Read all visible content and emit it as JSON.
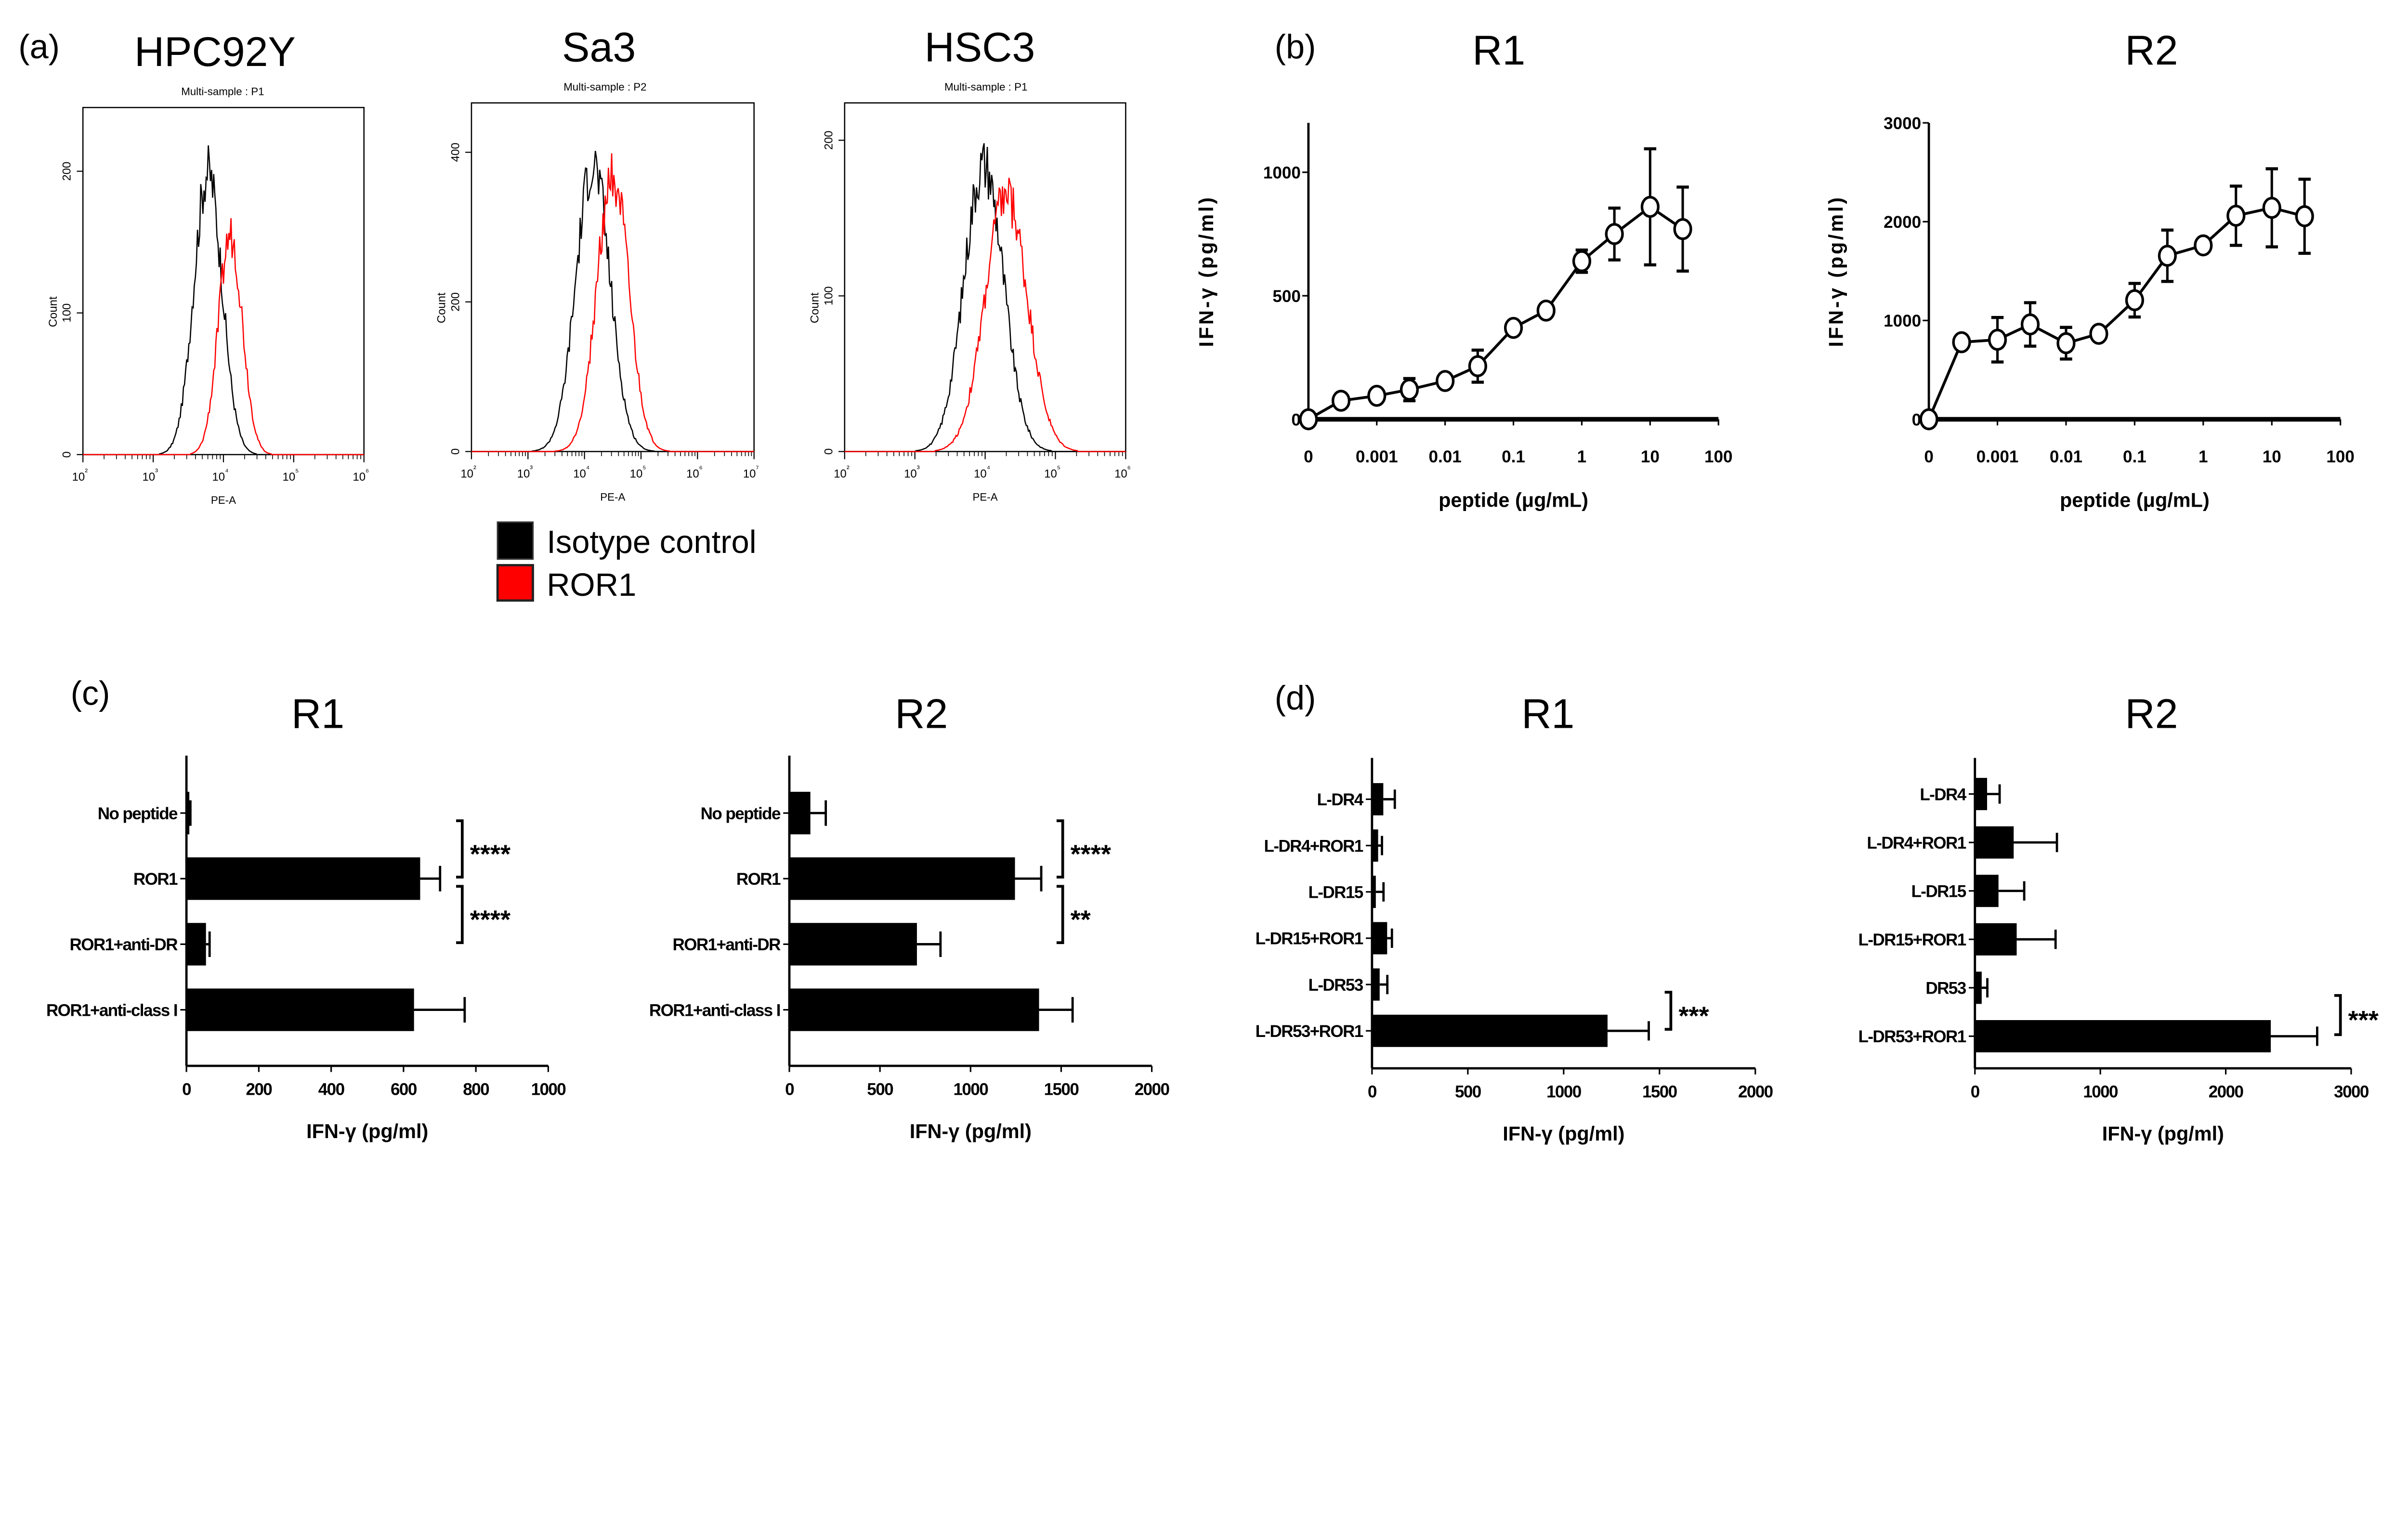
{
  "panels": {
    "a": "(a)",
    "b": "(b)",
    "c": "(c)",
    "d": "(d)"
  },
  "legend": {
    "items": [
      {
        "label": "Isotype control",
        "color": "#000000"
      },
      {
        "label": "ROR1",
        "color": "#ff0000"
      }
    ]
  },
  "chart_data": [
    {
      "id": "a1",
      "type": "histogram",
      "title": "HPC92Y",
      "subtitle": "Multi-sample : P1",
      "xlabel": "PE-A",
      "ylabel": "Count",
      "xscale": "log",
      "xlim_log10": [
        2,
        6
      ],
      "ylim": [
        0,
        245
      ],
      "yticks": [
        0,
        100,
        200
      ],
      "series": [
        {
          "name": "Isotype control",
          "color": "#000000",
          "peak_log10": 3.78,
          "peak_count": 200,
          "spread_log10": 0.2
        },
        {
          "name": "ROR1",
          "color": "#ff0000",
          "peak_log10": 4.1,
          "peak_count": 155,
          "spread_log10": 0.17
        }
      ]
    },
    {
      "id": "a2",
      "type": "histogram",
      "title": "Sa3",
      "subtitle": "Multi-sample : P2",
      "xlabel": "PE-A",
      "ylabel": "Count",
      "xscale": "log",
      "xlim_log10": [
        2,
        7
      ],
      "ylim": [
        0,
        466
      ],
      "yticks": [
        0,
        200,
        400
      ],
      "series": [
        {
          "name": "Isotype control",
          "color": "#000000",
          "peak_log10": 4.15,
          "peak_count": 385,
          "spread_log10": 0.3
        },
        {
          "name": "ROR1",
          "color": "#ff0000",
          "peak_log10": 4.5,
          "peak_count": 370,
          "spread_log10": 0.28
        }
      ]
    },
    {
      "id": "a3",
      "type": "histogram",
      "title": "HSC3",
      "subtitle": "Multi-sample : P1",
      "xlabel": "PE-A",
      "ylabel": "Count",
      "xscale": "log",
      "xlim_log10": [
        2,
        6
      ],
      "ylim": [
        0,
        224
      ],
      "yticks": [
        0,
        100,
        200
      ],
      "series": [
        {
          "name": "Isotype control",
          "color": "#000000",
          "peak_log10": 3.98,
          "peak_count": 185,
          "spread_log10": 0.28
        },
        {
          "name": "ROR1",
          "color": "#ff0000",
          "peak_log10": 4.3,
          "peak_count": 165,
          "spread_log10": 0.3
        }
      ]
    },
    {
      "id": "b1",
      "type": "line",
      "title": "R1",
      "xlabel": "peptide (μg/mL)",
      "ylabel": "IFN-γ (pg/ml)",
      "xtick_labels": [
        "0",
        "0.001",
        "0.01",
        "0.1",
        "1",
        "10",
        "100"
      ],
      "ylim": [
        0,
        1200
      ],
      "yticks": [
        0,
        500,
        1000
      ],
      "x": [
        0,
        0.0003,
        0.001,
        0.003,
        0.01,
        0.03,
        0.1,
        0.3,
        1,
        3,
        10,
        30
      ],
      "y": [
        0,
        75,
        95,
        120,
        155,
        215,
        370,
        440,
        640,
        750,
        860,
        770
      ],
      "err": [
        0,
        0,
        0,
        45,
        0,
        65,
        0,
        0,
        45,
        105,
        235,
        170
      ]
    },
    {
      "id": "b2",
      "type": "line",
      "title": "R2",
      "xlabel": "peptide (μg/mL)",
      "ylabel": "IFN-γ (pg/ml)",
      "xtick_labels": [
        "0",
        "0.001",
        "0.01",
        "0.1",
        "1",
        "10",
        "100"
      ],
      "ylim": [
        0,
        3000
      ],
      "yticks": [
        0,
        1000,
        2000,
        3000
      ],
      "x": [
        0,
        0.0003,
        0.001,
        0.003,
        0.01,
        0.03,
        0.1,
        0.3,
        1,
        3,
        10,
        30
      ],
      "y": [
        0,
        780,
        805,
        960,
        770,
        865,
        1205,
        1655,
        1760,
        2060,
        2140,
        2055
      ],
      "err": [
        0,
        0,
        225,
        220,
        160,
        0,
        170,
        260,
        0,
        300,
        395,
        375
      ]
    },
    {
      "id": "c1",
      "type": "bar",
      "orientation": "horizontal",
      "title": "R1",
      "xlabel": "IFN-γ (pg/ml)",
      "xlim": [
        0,
        1000
      ],
      "xticks": [
        0,
        200,
        400,
        600,
        800,
        1000
      ],
      "categories": [
        "No peptide",
        "ROR1",
        "ROR1+anti-DR",
        "ROR1+anti-class I"
      ],
      "values": [
        8,
        646,
        54,
        629
      ],
      "err": [
        3,
        55,
        10,
        140
      ],
      "significance": [
        {
          "from": 0,
          "to": 1,
          "label": "****"
        },
        {
          "from": 1,
          "to": 2,
          "label": "****"
        }
      ]
    },
    {
      "id": "c2",
      "type": "bar",
      "orientation": "horizontal",
      "title": "R2",
      "xlabel": "IFN-γ (pg/ml)",
      "xlim": [
        0,
        2000
      ],
      "xticks": [
        0,
        500,
        1000,
        1500,
        2000
      ],
      "categories": [
        "No peptide",
        "ROR1",
        "ROR1+anti-DR",
        "ROR1+anti-class I"
      ],
      "values": [
        116,
        1245,
        704,
        1378
      ],
      "err": [
        85,
        145,
        130,
        185
      ],
      "significance": [
        {
          "from": 0,
          "to": 1,
          "label": "****"
        },
        {
          "from": 1,
          "to": 2,
          "label": "**"
        }
      ]
    },
    {
      "id": "d1",
      "type": "bar",
      "orientation": "horizontal",
      "title": "R1",
      "xlabel": "IFN-γ (pg/ml)",
      "xlim": [
        0,
        2000
      ],
      "xticks": [
        0,
        500,
        1000,
        1500,
        2000
      ],
      "categories": [
        "L-DR4",
        "L-DR4+ROR1",
        "L-DR15",
        "L-DR15+ROR1",
        "L-DR53",
        "L-DR53+ROR1"
      ],
      "values": [
        59,
        32,
        20,
        79,
        40,
        1229
      ],
      "err": [
        60,
        20,
        40,
        25,
        40,
        215
      ],
      "significance": [
        {
          "from": 4,
          "to": 5,
          "label": "***"
        }
      ]
    },
    {
      "id": "d2",
      "type": "bar",
      "orientation": "horizontal",
      "title": "R2",
      "xlabel": "IFN-γ (pg/ml)",
      "xlim": [
        0,
        3000
      ],
      "xticks": [
        0,
        1000,
        2000,
        3000
      ],
      "categories": [
        "L-DR4",
        "L-DR4+ROR1",
        "L-DR15",
        "L-DR15+ROR1",
        "DR53",
        "L-DR53+ROR1"
      ],
      "values": [
        97,
        309,
        188,
        333,
        54,
        2359
      ],
      "err": [
        100,
        345,
        205,
        310,
        45,
        370
      ],
      "significance": [
        {
          "from": 4,
          "to": 5,
          "label": "***"
        }
      ]
    }
  ]
}
